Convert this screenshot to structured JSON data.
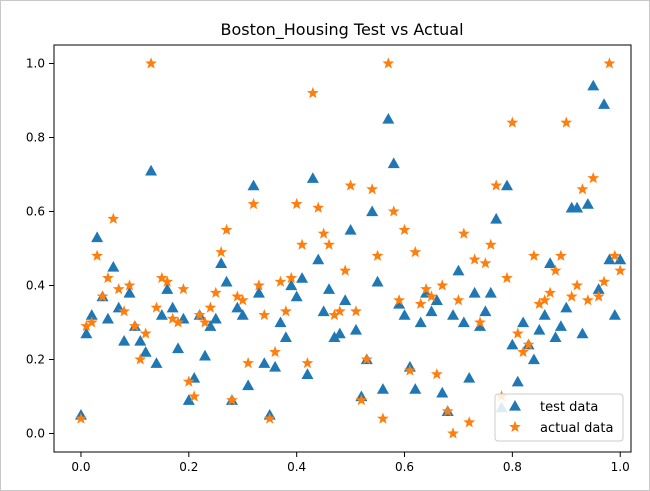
{
  "colors": {
    "test": "#1f77b4",
    "actual": "#ff7f0e",
    "axis": "#000000",
    "legend_border": "#cccccc"
  },
  "chart_data": {
    "type": "scatter",
    "title": "Boston_Housing Test vs Actual",
    "xlabel": "",
    "ylabel": "",
    "xlim": [
      -0.05,
      1.02
    ],
    "ylim": [
      -0.05,
      1.05
    ],
    "xticks": [
      0.0,
      0.2,
      0.4,
      0.6,
      0.8,
      1.0
    ],
    "xtick_labels": [
      "0.0",
      "0.2",
      "0.4",
      "0.6",
      "0.8",
      "1.0"
    ],
    "yticks": [
      0.0,
      0.2,
      0.4,
      0.6,
      0.8,
      1.0
    ],
    "ytick_labels": [
      "0.0",
      "0.2",
      "0.4",
      "0.6",
      "0.8",
      "1.0"
    ],
    "grid": false,
    "legend_position": "bottom-right",
    "series": [
      {
        "name": "test data",
        "marker": "triangle",
        "x": [
          0.0,
          0.01,
          0.02,
          0.03,
          0.04,
          0.05,
          0.06,
          0.07,
          0.08,
          0.09,
          0.1,
          0.11,
          0.12,
          0.13,
          0.14,
          0.15,
          0.16,
          0.17,
          0.18,
          0.19,
          0.2,
          0.21,
          0.22,
          0.23,
          0.24,
          0.25,
          0.26,
          0.27,
          0.28,
          0.29,
          0.3,
          0.31,
          0.32,
          0.33,
          0.34,
          0.35,
          0.36,
          0.37,
          0.38,
          0.39,
          0.4,
          0.41,
          0.42,
          0.43,
          0.44,
          0.45,
          0.46,
          0.47,
          0.48,
          0.49,
          0.5,
          0.51,
          0.52,
          0.53,
          0.54,
          0.55,
          0.56,
          0.57,
          0.58,
          0.59,
          0.6,
          0.61,
          0.62,
          0.63,
          0.64,
          0.65,
          0.66,
          0.67,
          0.68,
          0.69,
          0.7,
          0.71,
          0.72,
          0.73,
          0.74,
          0.75,
          0.76,
          0.77,
          0.78,
          0.79,
          0.8,
          0.81,
          0.82,
          0.83,
          0.84,
          0.85,
          0.86,
          0.87,
          0.88,
          0.89,
          0.9,
          0.91,
          0.92,
          0.93,
          0.94,
          0.95,
          0.96,
          0.97,
          0.98,
          0.99,
          1.0
        ],
        "y": [
          0.05,
          0.27,
          0.32,
          0.53,
          0.37,
          0.31,
          0.45,
          0.34,
          0.25,
          0.38,
          0.29,
          0.25,
          0.22,
          0.71,
          0.19,
          0.32,
          0.39,
          0.34,
          0.23,
          0.31,
          0.09,
          0.15,
          0.32,
          0.21,
          0.29,
          0.31,
          0.46,
          0.41,
          0.09,
          0.34,
          0.32,
          0.13,
          0.67,
          0.38,
          0.19,
          0.05,
          0.18,
          0.3,
          0.26,
          0.4,
          0.37,
          0.42,
          0.16,
          0.69,
          0.47,
          0.33,
          0.39,
          0.26,
          0.27,
          0.36,
          0.55,
          0.28,
          0.1,
          0.2,
          0.6,
          0.41,
          0.12,
          0.85,
          0.73,
          0.35,
          0.32,
          0.18,
          0.12,
          0.3,
          0.38,
          0.33,
          0.36,
          0.11,
          0.06,
          0.32,
          0.44,
          0.3,
          0.15,
          0.38,
          0.29,
          0.33,
          0.38,
          0.58,
          0.07,
          0.67,
          0.24,
          0.14,
          0.3,
          0.24,
          0.2,
          0.28,
          0.32,
          0.46,
          0.26,
          0.29,
          0.34,
          0.61,
          0.61,
          0.27,
          0.62,
          0.94,
          0.39,
          0.89,
          0.47,
          0.32,
          0.47
        ]
      },
      {
        "name": "actual data",
        "marker": "star",
        "x": [
          0.0,
          0.01,
          0.02,
          0.03,
          0.04,
          0.05,
          0.06,
          0.07,
          0.08,
          0.09,
          0.1,
          0.11,
          0.12,
          0.13,
          0.14,
          0.15,
          0.16,
          0.17,
          0.18,
          0.19,
          0.2,
          0.21,
          0.22,
          0.23,
          0.24,
          0.25,
          0.26,
          0.27,
          0.28,
          0.29,
          0.3,
          0.31,
          0.32,
          0.33,
          0.34,
          0.35,
          0.36,
          0.37,
          0.38,
          0.39,
          0.4,
          0.41,
          0.42,
          0.43,
          0.44,
          0.45,
          0.46,
          0.47,
          0.48,
          0.49,
          0.5,
          0.51,
          0.52,
          0.53,
          0.54,
          0.55,
          0.56,
          0.57,
          0.58,
          0.59,
          0.6,
          0.61,
          0.62,
          0.63,
          0.64,
          0.65,
          0.66,
          0.67,
          0.68,
          0.69,
          0.7,
          0.71,
          0.72,
          0.73,
          0.74,
          0.75,
          0.76,
          0.77,
          0.78,
          0.79,
          0.8,
          0.81,
          0.82,
          0.83,
          0.84,
          0.85,
          0.86,
          0.87,
          0.88,
          0.89,
          0.9,
          0.91,
          0.92,
          0.93,
          0.94,
          0.95,
          0.96,
          0.97,
          0.98,
          0.99,
          1.0
        ],
        "y": [
          0.04,
          0.29,
          0.3,
          0.48,
          0.37,
          0.42,
          0.58,
          0.39,
          0.33,
          0.4,
          0.29,
          0.2,
          0.27,
          1.0,
          0.34,
          0.42,
          0.41,
          0.31,
          0.3,
          0.39,
          0.14,
          0.1,
          0.32,
          0.3,
          0.34,
          0.38,
          0.49,
          0.55,
          0.09,
          0.37,
          0.36,
          0.19,
          0.62,
          0.4,
          0.32,
          0.04,
          0.22,
          0.41,
          0.33,
          0.42,
          0.62,
          0.51,
          0.19,
          0.92,
          0.61,
          0.54,
          0.51,
          0.32,
          0.33,
          0.44,
          0.67,
          0.33,
          0.09,
          0.2,
          0.66,
          0.48,
          0.04,
          1.0,
          0.6,
          0.36,
          0.55,
          0.17,
          0.49,
          0.35,
          0.39,
          0.37,
          0.16,
          0.4,
          0.06,
          0.0,
          0.36,
          0.54,
          0.03,
          0.47,
          0.3,
          0.46,
          0.51,
          0.67,
          0.1,
          0.42,
          0.84,
          0.27,
          0.22,
          0.24,
          0.48,
          0.35,
          0.36,
          0.38,
          0.44,
          0.48,
          0.84,
          0.37,
          0.4,
          0.66,
          0.36,
          0.69,
          0.37,
          0.41,
          1.0,
          0.48,
          0.44
        ]
      }
    ]
  }
}
